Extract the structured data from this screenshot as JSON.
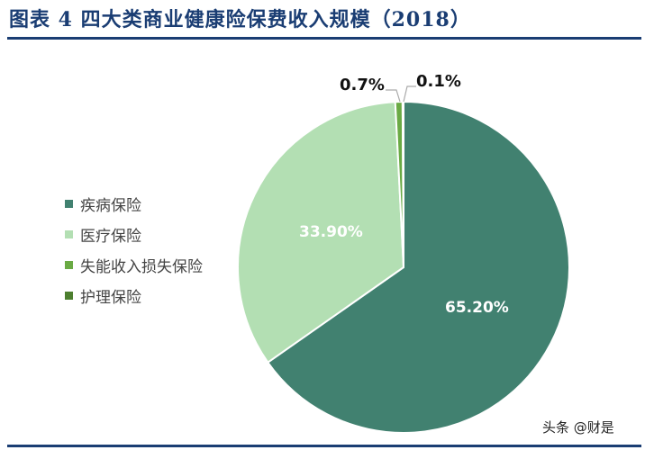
{
  "title": "图表 4  四大类商业健康险保费收入规模（2018）",
  "watermark": "头条 @财是",
  "legend": [
    {
      "label": "疾病保险",
      "color": "#418170"
    },
    {
      "label": "医疗保险",
      "color": "#b3dfb3"
    },
    {
      "label": "失能收入损失保险",
      "color": "#6aaa44"
    },
    {
      "label": "护理保险",
      "color": "#4d7f2f"
    }
  ],
  "labels": {
    "disease": "65.20%",
    "medical": "33.90%",
    "disability": "0.7%",
    "nursing": "0.1%"
  },
  "chart_data": {
    "type": "pie",
    "title": "图表 4  四大类商业健康险保费收入规模（2018）",
    "categories": [
      "疾病保险",
      "医疗保险",
      "失能收入损失保险",
      "护理保险"
    ],
    "values": [
      65.2,
      33.9,
      0.7,
      0.1
    ],
    "value_labels": [
      "65.20%",
      "33.90%",
      "0.7%",
      "0.1%"
    ],
    "colors": [
      "#418170",
      "#b3dfb3",
      "#6aaa44",
      "#4d7f2f"
    ],
    "start_angle": "12 o'clock, clockwise",
    "legend_position": "left"
  }
}
